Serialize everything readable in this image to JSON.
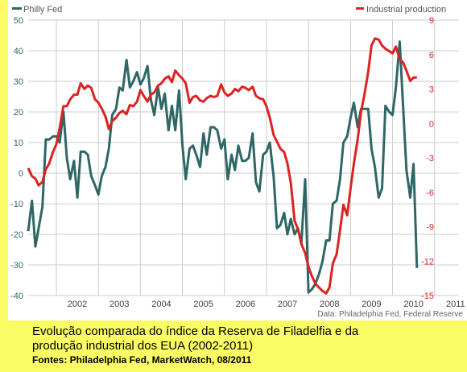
{
  "caption": {
    "line1": "Evolução comparada do índice da Reserva de Filadelfia e da",
    "line2": "produção industrial dos EUA (2002-2011)",
    "line3": "Fontes: Philadelphia Fed, MarketWatch, 08/2011"
  },
  "chart_data": {
    "type": "line",
    "title": "",
    "source_note": "Data: Philadelphia Fed, Federal Reserve",
    "xlim": [
      2001.33,
      2011.58
    ],
    "x_ticks": [
      2002,
      2003,
      2004,
      2005,
      2006,
      2007,
      2008,
      2009,
      2010,
      2011
    ],
    "x_tick_labels": [
      "2002",
      "2003",
      "2004",
      "2005",
      "2006",
      "2007",
      "2008",
      "2009",
      "2010",
      "2011"
    ],
    "y_left": {
      "min": -40,
      "max": 50,
      "ticks": [
        -40,
        -30,
        -20,
        -10,
        0,
        10,
        20,
        30,
        40,
        50
      ]
    },
    "y_right": {
      "min": -15,
      "max": 9,
      "ticks": [
        -15,
        -12,
        -9,
        -6,
        -3,
        0,
        3,
        6,
        9
      ]
    },
    "grid": true,
    "colors": {
      "philly": "#2f6666",
      "industrial": "#dd2222",
      "left_tick": "#2f6666",
      "right_tick": "#dd2222",
      "grid": "#cccccc",
      "background": "#fbfb66"
    },
    "series": [
      {
        "name": "Philly Fed",
        "axis": "left",
        "points": [
          [
            2001.33,
            -19
          ],
          [
            2001.42,
            -9
          ],
          [
            2001.5,
            -24
          ],
          [
            2001.58,
            -18
          ],
          [
            2001.67,
            -11
          ],
          [
            2001.75,
            11
          ],
          [
            2001.83,
            11
          ],
          [
            2001.92,
            12
          ],
          [
            2002.0,
            12
          ],
          [
            2002.08,
            10
          ],
          [
            2002.17,
            20
          ],
          [
            2002.25,
            5
          ],
          [
            2002.33,
            -2
          ],
          [
            2002.42,
            4
          ],
          [
            2002.5,
            -8
          ],
          [
            2002.58,
            7
          ],
          [
            2002.67,
            7
          ],
          [
            2002.75,
            6
          ],
          [
            2002.83,
            -1
          ],
          [
            2002.92,
            -4
          ],
          [
            2003.0,
            -7
          ],
          [
            2003.08,
            -1
          ],
          [
            2003.17,
            2
          ],
          [
            2003.25,
            8
          ],
          [
            2003.33,
            19
          ],
          [
            2003.42,
            21
          ],
          [
            2003.5,
            28
          ],
          [
            2003.58,
            27
          ],
          [
            2003.67,
            37
          ],
          [
            2003.75,
            28
          ],
          [
            2003.83,
            30
          ],
          [
            2003.92,
            33
          ],
          [
            2004.0,
            29
          ],
          [
            2004.08,
            31
          ],
          [
            2004.17,
            35
          ],
          [
            2004.25,
            24
          ],
          [
            2004.33,
            19
          ],
          [
            2004.42,
            28
          ],
          [
            2004.5,
            21
          ],
          [
            2004.58,
            26
          ],
          [
            2004.67,
            14
          ],
          [
            2004.75,
            22
          ],
          [
            2004.83,
            14
          ],
          [
            2004.92,
            27
          ],
          [
            2005.0,
            9
          ],
          [
            2005.08,
            -2
          ],
          [
            2005.17,
            8
          ],
          [
            2005.25,
            9
          ],
          [
            2005.33,
            6
          ],
          [
            2005.42,
            2
          ],
          [
            2005.5,
            13
          ],
          [
            2005.58,
            6
          ],
          [
            2005.67,
            15
          ],
          [
            2005.75,
            15
          ],
          [
            2005.83,
            14
          ],
          [
            2005.92,
            8
          ],
          [
            2006.0,
            11
          ],
          [
            2006.08,
            -2
          ],
          [
            2006.17,
            6
          ],
          [
            2006.25,
            1
          ],
          [
            2006.33,
            9
          ],
          [
            2006.42,
            4
          ],
          [
            2006.5,
            4
          ],
          [
            2006.58,
            5
          ],
          [
            2006.67,
            13
          ],
          [
            2006.75,
            -3
          ],
          [
            2006.83,
            -6
          ],
          [
            2006.92,
            6
          ],
          [
            2007.0,
            7
          ],
          [
            2007.08,
            10
          ],
          [
            2007.17,
            -1
          ],
          [
            2007.25,
            -18
          ],
          [
            2007.33,
            -17
          ],
          [
            2007.42,
            -13
          ],
          [
            2007.5,
            -20
          ],
          [
            2007.58,
            -15
          ],
          [
            2007.67,
            -20
          ],
          [
            2007.75,
            -18
          ],
          [
            2007.83,
            -23
          ],
          [
            2007.92,
            -2
          ],
          [
            2008.0,
            -39
          ],
          [
            2008.08,
            -38
          ],
          [
            2008.17,
            -36
          ],
          [
            2008.25,
            -33
          ],
          [
            2008.33,
            -29
          ],
          [
            2008.42,
            -22
          ],
          [
            2008.5,
            -22
          ],
          [
            2008.58,
            -10
          ],
          [
            2008.67,
            -9
          ],
          [
            2008.75,
            -2
          ],
          [
            2008.83,
            10
          ],
          [
            2008.92,
            12
          ],
          [
            2009.0,
            18
          ],
          [
            2009.08,
            23
          ],
          [
            2009.17,
            15
          ],
          [
            2009.25,
            21
          ],
          [
            2009.42,
            21
          ],
          [
            2009.5,
            8
          ],
          [
            2009.58,
            2
          ],
          [
            2009.67,
            -8
          ],
          [
            2009.75,
            -5
          ],
          [
            2009.83,
            22
          ],
          [
            2009.92,
            20
          ],
          [
            2010.0,
            19
          ],
          [
            2010.08,
            28
          ],
          [
            2010.17,
            43
          ],
          [
            2010.25,
            22
          ],
          [
            2010.33,
            1
          ],
          [
            2010.42,
            -8
          ],
          [
            2010.5,
            3
          ],
          [
            2010.58,
            -31
          ]
        ]
      },
      {
        "name": "Industrial production",
        "axis": "right",
        "points": [
          [
            2001.33,
            -3.9
          ],
          [
            2001.42,
            -4.6
          ],
          [
            2001.5,
            -4.8
          ],
          [
            2001.58,
            -5.4
          ],
          [
            2001.67,
            -5.1
          ],
          [
            2001.75,
            -4.0
          ],
          [
            2001.83,
            -3.5
          ],
          [
            2001.92,
            -2.5
          ],
          [
            2002.0,
            -1.8
          ],
          [
            2002.08,
            -0.4
          ],
          [
            2002.17,
            1.5
          ],
          [
            2002.25,
            1.5
          ],
          [
            2002.33,
            2.1
          ],
          [
            2002.42,
            2.5
          ],
          [
            2002.5,
            2.5
          ],
          [
            2002.58,
            3.5
          ],
          [
            2002.67,
            3.0
          ],
          [
            2002.75,
            3.3
          ],
          [
            2002.83,
            3.1
          ],
          [
            2002.92,
            2.1
          ],
          [
            2003.0,
            1.8
          ],
          [
            2003.08,
            1.3
          ],
          [
            2003.17,
            0.6
          ],
          [
            2003.25,
            -0.5
          ],
          [
            2003.33,
            0.2
          ],
          [
            2003.42,
            0.5
          ],
          [
            2003.5,
            0.9
          ],
          [
            2003.58,
            1.1
          ],
          [
            2003.67,
            0.8
          ],
          [
            2003.75,
            1.6
          ],
          [
            2003.83,
            1.5
          ],
          [
            2003.92,
            1.9
          ],
          [
            2004.0,
            2.9
          ],
          [
            2004.08,
            2.4
          ],
          [
            2004.17,
            1.9
          ],
          [
            2004.25,
            2.5
          ],
          [
            2004.33,
            2.7
          ],
          [
            2004.42,
            3.3
          ],
          [
            2004.5,
            3.5
          ],
          [
            2004.58,
            3.9
          ],
          [
            2004.67,
            4.1
          ],
          [
            2004.75,
            3.6
          ],
          [
            2004.83,
            4.6
          ],
          [
            2004.92,
            4.2
          ],
          [
            2005.0,
            3.9
          ],
          [
            2005.08,
            3.5
          ],
          [
            2005.17,
            1.8
          ],
          [
            2005.25,
            2.3
          ],
          [
            2005.33,
            2.4
          ],
          [
            2005.42,
            2.0
          ],
          [
            2005.5,
            1.9
          ],
          [
            2005.58,
            2.2
          ],
          [
            2005.67,
            2.4
          ],
          [
            2005.75,
            2.3
          ],
          [
            2005.83,
            2.4
          ],
          [
            2005.92,
            3.4
          ],
          [
            2006.0,
            2.7
          ],
          [
            2006.08,
            2.4
          ],
          [
            2006.17,
            2.6
          ],
          [
            2006.25,
            3.0
          ],
          [
            2006.33,
            2.8
          ],
          [
            2006.42,
            3.2
          ],
          [
            2006.5,
            3.1
          ],
          [
            2006.58,
            2.9
          ],
          [
            2006.67,
            3.2
          ],
          [
            2006.75,
            2.4
          ],
          [
            2006.83,
            2.2
          ],
          [
            2006.92,
            2.1
          ],
          [
            2007.0,
            1.5
          ],
          [
            2007.08,
            0.5
          ],
          [
            2007.17,
            -1.0
          ],
          [
            2007.25,
            -1.6
          ],
          [
            2007.33,
            -2.2
          ],
          [
            2007.42,
            -2.5
          ],
          [
            2007.5,
            -3.5
          ],
          [
            2007.58,
            -5.2
          ],
          [
            2007.67,
            -8.5
          ],
          [
            2007.75,
            -9.2
          ],
          [
            2007.83,
            -10.5
          ],
          [
            2007.92,
            -11.3
          ],
          [
            2008.0,
            -12.5
          ],
          [
            2008.08,
            -13.3
          ],
          [
            2008.17,
            -14.0
          ],
          [
            2008.25,
            -14.3
          ],
          [
            2008.33,
            -14.6
          ],
          [
            2008.42,
            -14.8
          ],
          [
            2008.5,
            -14.3
          ],
          [
            2008.58,
            -12.2
          ],
          [
            2008.67,
            -11.4
          ],
          [
            2008.75,
            -9.3
          ],
          [
            2008.83,
            -7.1
          ],
          [
            2008.92,
            -8.0
          ],
          [
            2009.0,
            -5.7
          ],
          [
            2009.08,
            -3.5
          ],
          [
            2009.17,
            -1.4
          ],
          [
            2009.25,
            1.0
          ],
          [
            2009.33,
            2.5
          ],
          [
            2009.42,
            4.5
          ],
          [
            2009.5,
            6.8
          ],
          [
            2009.58,
            7.4
          ],
          [
            2009.67,
            7.3
          ],
          [
            2009.75,
            6.8
          ],
          [
            2009.83,
            6.5
          ],
          [
            2009.92,
            6.3
          ],
          [
            2010.0,
            6.1
          ],
          [
            2010.08,
            6.7
          ],
          [
            2010.17,
            5.6
          ],
          [
            2010.25,
            5.3
          ],
          [
            2010.33,
            4.6
          ],
          [
            2010.42,
            3.7
          ],
          [
            2010.5,
            4.0
          ],
          [
            2010.58,
            4.0
          ]
        ]
      }
    ]
  }
}
